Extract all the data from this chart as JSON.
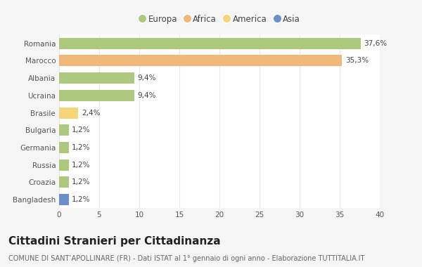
{
  "countries": [
    "Romania",
    "Marocco",
    "Albania",
    "Ucraina",
    "Brasile",
    "Bulgaria",
    "Germania",
    "Russia",
    "Croazia",
    "Bangladesh"
  ],
  "values": [
    37.6,
    35.3,
    9.4,
    9.4,
    2.4,
    1.2,
    1.2,
    1.2,
    1.2,
    1.2
  ],
  "labels": [
    "37,6%",
    "35,3%",
    "9,4%",
    "9,4%",
    "2,4%",
    "1,2%",
    "1,2%",
    "1,2%",
    "1,2%",
    "1,2%"
  ],
  "colors": [
    "#adc97e",
    "#f0b97a",
    "#adc97e",
    "#adc97e",
    "#f5d47a",
    "#adc97e",
    "#adc97e",
    "#adc97e",
    "#adc97e",
    "#6b8fc9"
  ],
  "legend_labels": [
    "Europa",
    "Africa",
    "America",
    "Asia"
  ],
  "legend_colors": [
    "#adc97e",
    "#f0b97a",
    "#f5d47a",
    "#6b8fc9"
  ],
  "title": "Cittadini Stranieri per Cittadinanza",
  "subtitle": "COMUNE DI SANT’APOLLINARE (FR) - Dati ISTAT al 1° gennaio di ogni anno - Elaborazione TUTTITALIA.IT",
  "xlim": [
    0,
    40
  ],
  "xticks": [
    0,
    5,
    10,
    15,
    20,
    25,
    30,
    35,
    40
  ],
  "plot_bg": "#ffffff",
  "fig_bg": "#f5f5f5",
  "bar_height": 0.65,
  "grid_color": "#e8e8e8",
  "title_fontsize": 11,
  "subtitle_fontsize": 7,
  "label_fontsize": 7.5,
  "tick_fontsize": 7.5,
  "legend_fontsize": 8.5
}
